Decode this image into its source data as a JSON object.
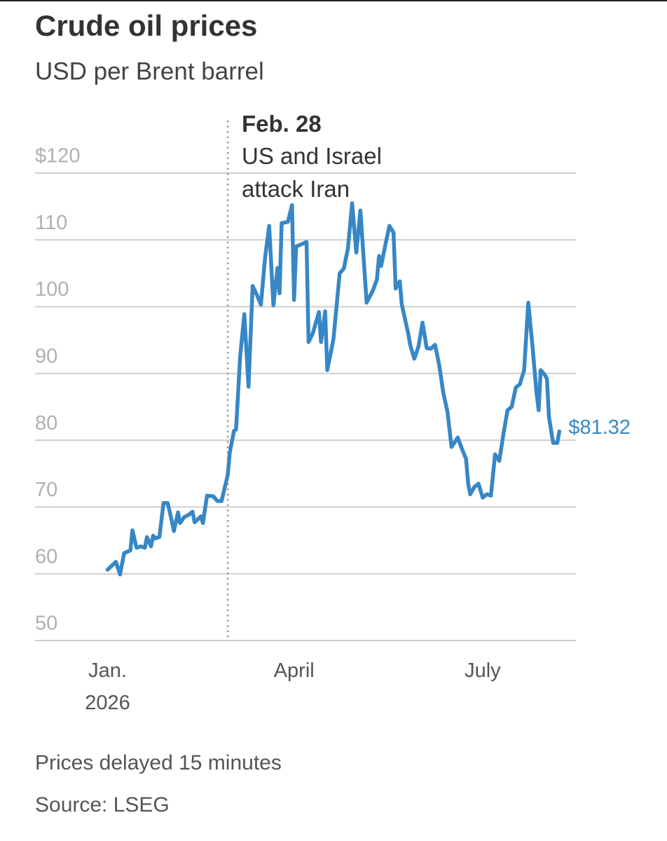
{
  "chart_data": {
    "type": "line",
    "title": "Crude oil prices",
    "subtitle": "USD per Brent barrel",
    "notes": [
      "Prices delayed 15 minutes",
      "Source: LSEG"
    ],
    "annotation": {
      "x": 58,
      "date": "Feb. 28",
      "text": "US and Israel attack Iran"
    },
    "color": "#3787c6",
    "end_label": "$81.32",
    "xlim": [
      -35,
      226
    ],
    "xticks": [
      {
        "value": 0,
        "label": "Jan. 2026"
      },
      {
        "value": 90,
        "label": "April"
      },
      {
        "value": 181,
        "label": "July"
      }
    ],
    "ylim": [
      50,
      120
    ],
    "yticks": [
      50,
      60,
      70,
      80,
      90,
      100,
      110,
      {
        "value": 120,
        "label": "$120"
      }
    ],
    "grid": true,
    "x": [
      0,
      4,
      6,
      8,
      11,
      12,
      14,
      16,
      18,
      19,
      21,
      22,
      23,
      25,
      27,
      29,
      31,
      32,
      34,
      35,
      37,
      39,
      41,
      42,
      45,
      46,
      48,
      51,
      53,
      55,
      58,
      59,
      61,
      62,
      64,
      66,
      68,
      70,
      72,
      74,
      76,
      78,
      80,
      82,
      83,
      84,
      87,
      89,
      90,
      91,
      94,
      96,
      97,
      99,
      102,
      103,
      105,
      106,
      109,
      112,
      114,
      116,
      118,
      120,
      122,
      125,
      128,
      130,
      131,
      132,
      134,
      136,
      138,
      139,
      141,
      142,
      145,
      146,
      148,
      150,
      152,
      154,
      156,
      158,
      160,
      162,
      164,
      166,
      169,
      171,
      173,
      174,
      175,
      177,
      179,
      181,
      183,
      185,
      187,
      189,
      191,
      193,
      195,
      197,
      199,
      201,
      203,
      205,
      207,
      208,
      209,
      211,
      212,
      213,
      215,
      217,
      218
    ],
    "values": [
      60.6,
      61.8,
      59.9,
      63.1,
      63.5,
      66.5,
      63.9,
      64.1,
      63.9,
      65.5,
      64.1,
      65.7,
      65.3,
      65.5,
      70.6,
      70.6,
      67.9,
      66.4,
      69.2,
      67.6,
      68.5,
      68.8,
      69.3,
      67.7,
      68.6,
      67.6,
      71.7,
      71.6,
      70.9,
      70.9,
      74.8,
      78.2,
      81.4,
      81.6,
      92.6,
      98.9,
      88.0,
      103.1,
      101.8,
      100.3,
      107.3,
      112.1,
      100.2,
      105.8,
      102.0,
      112.5,
      112.7,
      115.2,
      101.0,
      109.0,
      109.4,
      109.7,
      94.7,
      96.0,
      99.2,
      94.7,
      99.3,
      90.5,
      95.1,
      105.0,
      105.7,
      108.7,
      115.5,
      108.1,
      114.4,
      100.6,
      102.4,
      104.1,
      107.6,
      106.1,
      109.2,
      112.1,
      111.1,
      102.7,
      103.8,
      100.3,
      96.1,
      94.3,
      92.2,
      94.0,
      97.6,
      93.8,
      93.7,
      94.3,
      91.3,
      87.1,
      84.3,
      79.0,
      80.4,
      78.7,
      77.2,
      73.5,
      71.9,
      73.0,
      73.5,
      71.4,
      71.9,
      71.7,
      77.9,
      76.9,
      80.9,
      84.5,
      85.0,
      87.9,
      88.4,
      90.5,
      100.6,
      94.2,
      87.1,
      84.5,
      90.5,
      89.8,
      89.2,
      83.5,
      79.6,
      79.6,
      81.32
    ]
  }
}
